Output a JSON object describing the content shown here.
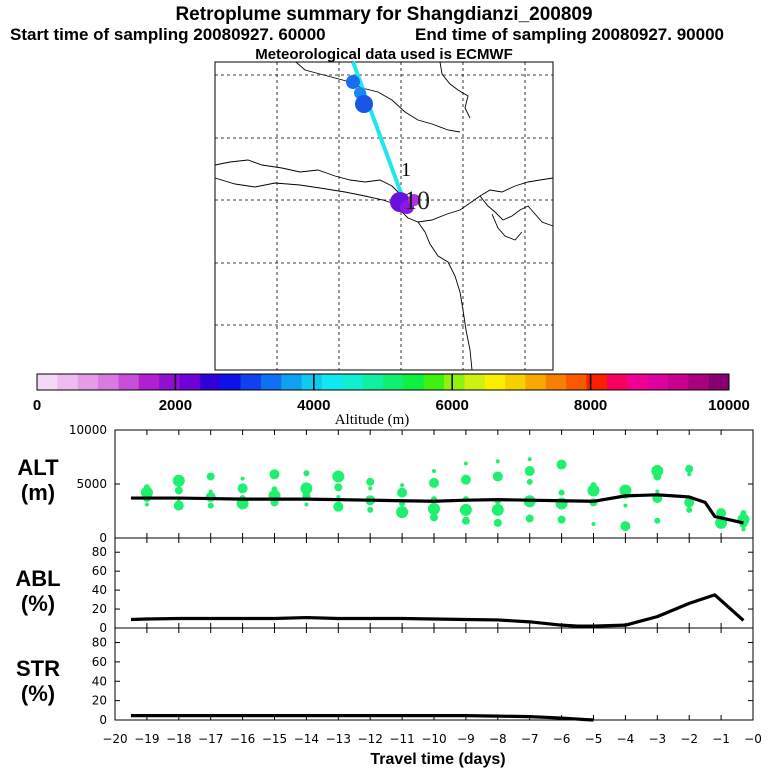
{
  "header": {
    "title": "Retroplume summary for Shangdianzi_200809",
    "start_label": "Start time of sampling 20080927. 60000",
    "end_label": "End time of sampling 20080927. 90000",
    "met_label": "Meteorological data used is ECMWF"
  },
  "colorbar": {
    "title": "Altitude (m)",
    "ticks": [
      "0",
      "2000",
      "4000",
      "6000",
      "8000",
      "10000"
    ],
    "colors": [
      "#f5d8f5",
      "#eebcf0",
      "#e49ce8",
      "#d87ae0",
      "#c650d8",
      "#b020d0",
      "#9010d0",
      "#7000d8",
      "#3000d8",
      "#1010e8",
      "#1040f0",
      "#1070f0",
      "#10a0f0",
      "#10c8f0",
      "#10e8f0",
      "#10f0d0",
      "#10f0a0",
      "#10f070",
      "#10f040",
      "#40f010",
      "#90f010",
      "#d0f010",
      "#f8f000",
      "#f8d000",
      "#f8a800",
      "#f88000",
      "#f85800",
      "#f82000",
      "#f80060",
      "#f00090",
      "#e000a0",
      "#c80090",
      "#a80080",
      "#880070"
    ]
  },
  "map": {
    "labels": [
      "1",
      "10"
    ]
  },
  "chart_data": [
    {
      "type": "line",
      "title": "ALT (m)",
      "panel_label": "ALT",
      "unit_label": "(m)",
      "ylim": [
        0,
        10000
      ],
      "yticks": [
        0,
        5000,
        10000
      ],
      "x": [
        -19.5,
        -19,
        -18,
        -17,
        -16,
        -15,
        -14,
        -13,
        -12,
        -11,
        -10,
        -9,
        -8,
        -7,
        -6,
        -5,
        -4,
        -3,
        -2.5,
        -2,
        -1.5,
        -1.2,
        -0.3
      ],
      "values": [
        3700,
        3700,
        3700,
        3650,
        3600,
        3600,
        3600,
        3550,
        3500,
        3450,
        3400,
        3500,
        3550,
        3500,
        3450,
        3400,
        3900,
        4000,
        3900,
        3800,
        3300,
        2000,
        1400
      ],
      "scatter": {
        "color": "#20f070",
        "points": [
          [
            -19,
            3100
          ],
          [
            -19,
            3700
          ],
          [
            -19,
            4200
          ],
          [
            -19,
            4700
          ],
          [
            -18,
            3000
          ],
          [
            -18,
            3600
          ],
          [
            -18,
            4400
          ],
          [
            -18,
            5300
          ],
          [
            -17,
            3000
          ],
          [
            -17,
            3800
          ],
          [
            -17,
            4300
          ],
          [
            -17,
            5700
          ],
          [
            -16,
            3200
          ],
          [
            -16,
            3700
          ],
          [
            -16,
            4600
          ],
          [
            -16,
            5500
          ],
          [
            -15,
            3300
          ],
          [
            -15,
            3900
          ],
          [
            -15,
            4500
          ],
          [
            -15,
            5900
          ],
          [
            -14,
            3100
          ],
          [
            -14,
            3900
          ],
          [
            -14,
            4600
          ],
          [
            -14,
            6000
          ],
          [
            -13,
            2900
          ],
          [
            -13,
            3800
          ],
          [
            -13,
            4700
          ],
          [
            -13,
            5700
          ],
          [
            -12,
            2600
          ],
          [
            -12,
            3500
          ],
          [
            -12,
            4600
          ],
          [
            -12,
            5200
          ],
          [
            -11,
            2400
          ],
          [
            -11,
            3200
          ],
          [
            -11,
            4200
          ],
          [
            -11,
            4900
          ],
          [
            -10,
            1900
          ],
          [
            -10,
            2700
          ],
          [
            -10,
            3600
          ],
          [
            -10,
            5100
          ],
          [
            -10,
            6200
          ],
          [
            -9,
            1600
          ],
          [
            -9,
            2600
          ],
          [
            -9,
            3600
          ],
          [
            -9,
            5400
          ],
          [
            -9,
            6900
          ],
          [
            -8,
            1400
          ],
          [
            -8,
            2600
          ],
          [
            -8,
            3400
          ],
          [
            -8,
            5700
          ],
          [
            -8,
            7100
          ],
          [
            -7,
            1800
          ],
          [
            -7,
            3400
          ],
          [
            -7,
            5200
          ],
          [
            -7,
            6200
          ],
          [
            -7,
            7300
          ],
          [
            -6,
            1700
          ],
          [
            -6,
            3200
          ],
          [
            -6,
            4200
          ],
          [
            -6,
            6800
          ],
          [
            -5,
            1300
          ],
          [
            -5,
            3300
          ],
          [
            -5,
            4400
          ],
          [
            -5,
            4900
          ],
          [
            -4,
            1100
          ],
          [
            -4,
            3000
          ],
          [
            -4,
            4000
          ],
          [
            -4,
            4400
          ],
          [
            -3,
            1600
          ],
          [
            -3,
            3700
          ],
          [
            -3,
            4300
          ],
          [
            -3,
            5700
          ],
          [
            -3,
            6200
          ],
          [
            -2,
            2600
          ],
          [
            -2,
            3300
          ],
          [
            -2,
            5900
          ],
          [
            -2,
            6400
          ],
          [
            -1,
            1400
          ],
          [
            -1,
            1900
          ],
          [
            -1,
            2300
          ],
          [
            -0.3,
            800
          ],
          [
            -0.3,
            1300
          ],
          [
            -0.3,
            1700
          ],
          [
            -0.3,
            2300
          ]
        ]
      }
    },
    {
      "type": "line",
      "title": "ABL (%)",
      "panel_label": "ABL",
      "unit_label": "(%)",
      "ylim": [
        0,
        95
      ],
      "yticks": [
        0,
        20,
        40,
        60,
        80
      ],
      "x": [
        -19.5,
        -19,
        -18,
        -17,
        -16,
        -15,
        -14,
        -13,
        -12,
        -11,
        -10,
        -9,
        -8,
        -7,
        -6,
        -5.5,
        -5,
        -4,
        -3,
        -2,
        -1.2,
        -0.3
      ],
      "values": [
        9,
        9.5,
        10,
        10,
        10,
        10,
        11,
        10,
        10,
        10,
        9.5,
        9,
        8.5,
        6.5,
        3,
        2,
        2,
        3,
        12,
        26,
        35,
        8
      ]
    },
    {
      "type": "line",
      "title": "STR (%)",
      "panel_label": "STR",
      "unit_label": "(%)",
      "ylim": [
        0,
        95
      ],
      "yticks": [
        0,
        20,
        40,
        60,
        80
      ],
      "x": [
        -19.5,
        -19,
        -18,
        -17,
        -16,
        -15,
        -14,
        -13,
        -12,
        -11,
        -10,
        -9,
        -8,
        -7,
        -6,
        -5.3,
        -5
      ],
      "values": [
        4.5,
        4.5,
        4.5,
        4.5,
        4.5,
        4.5,
        4.5,
        4.5,
        4.5,
        4.5,
        4.5,
        4.5,
        4,
        3.5,
        2,
        0.5,
        0
      ]
    }
  ],
  "xaxis": {
    "label": "Travel time (days)",
    "range": [
      -20,
      0
    ],
    "tick_labels": [
      "−20",
      "−19",
      "−18",
      "−17",
      "−16",
      "−15",
      "−14",
      "−13",
      "−12",
      "−11",
      "−10",
      "−9",
      "−8",
      "−7",
      "−6",
      "−5",
      "−4",
      "−3",
      "−2",
      "−1",
      "−0"
    ]
  }
}
